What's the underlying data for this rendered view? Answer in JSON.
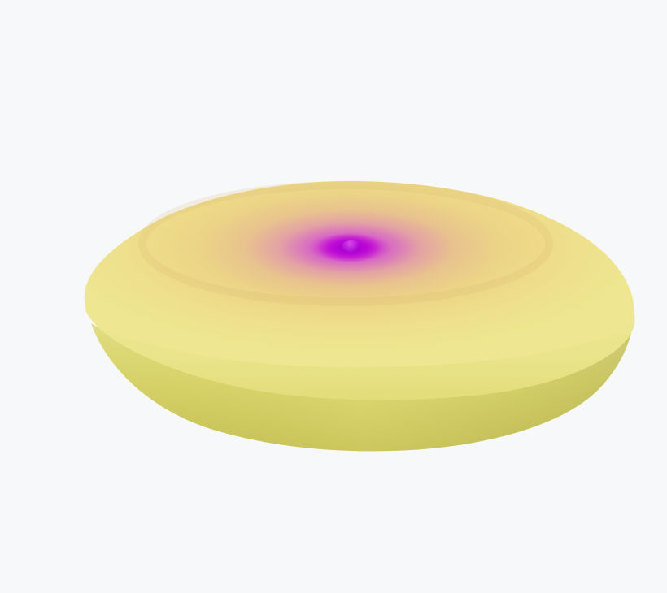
{
  "scene": {
    "background_color": "#f7f8fa",
    "object": "surface-plot",
    "colormap": {
      "center": "#c000d8",
      "mid": "#e2a6a0",
      "outer": "#ecd98a",
      "rim": "#eee98e",
      "side": "#d9d45e",
      "side_dark": "#c6c04e"
    }
  }
}
